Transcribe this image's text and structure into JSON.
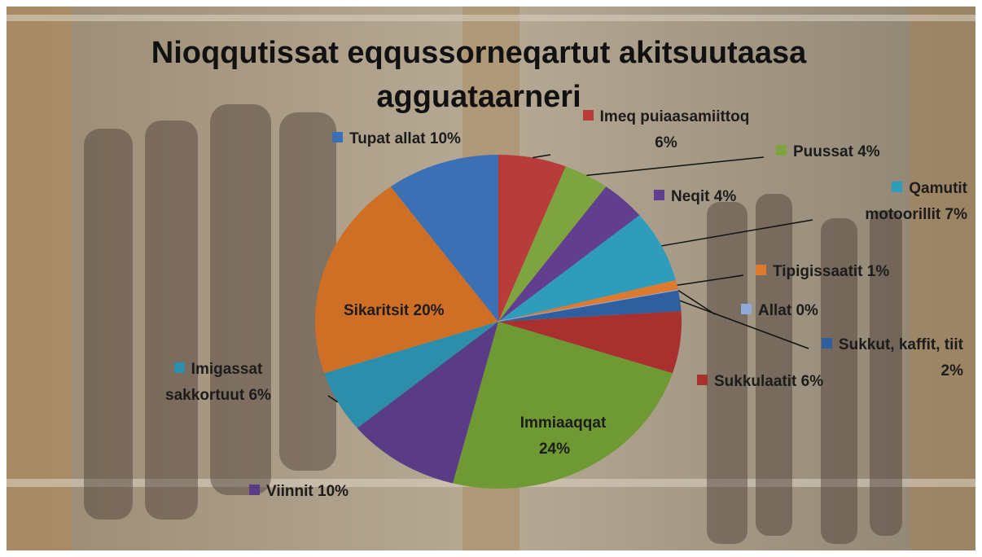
{
  "chart_data": {
    "type": "pie",
    "title": "Nioqqutissat eqqussorneqartut akitsuutaasa agguataarneri",
    "categories": [
      "Imeq puiaasamiittoq",
      "Puussat",
      "Neqit",
      "Qamutit motoorillit",
      "Tipigissaatit",
      "Allat",
      "Sukkut, kaffit, tiit",
      "Sukkulaatit",
      "Immiaaqqat",
      "Viinnit",
      "Imigassat sakkortuut",
      "Sikaritsit",
      "Tupat allat"
    ],
    "values": [
      6,
      4,
      4,
      7,
      1,
      0,
      2,
      6,
      24,
      10,
      6,
      20,
      10
    ],
    "value_labels": [
      "6%",
      "4%",
      "4%",
      "7%",
      "1%",
      "0%",
      "2%",
      "6%",
      "24%",
      "10%",
      "6%",
      "20%",
      "10%"
    ],
    "colors": [
      "#b83c3a",
      "#7ea43f",
      "#613f8e",
      "#2f9cbb",
      "#de7a2e",
      "#8fa9d8",
      "#2f5f9e",
      "#a8302e",
      "#6f9a33",
      "#5a3b86",
      "#2c8eab",
      "#cf6f25",
      "#3c70b5"
    ]
  }
}
